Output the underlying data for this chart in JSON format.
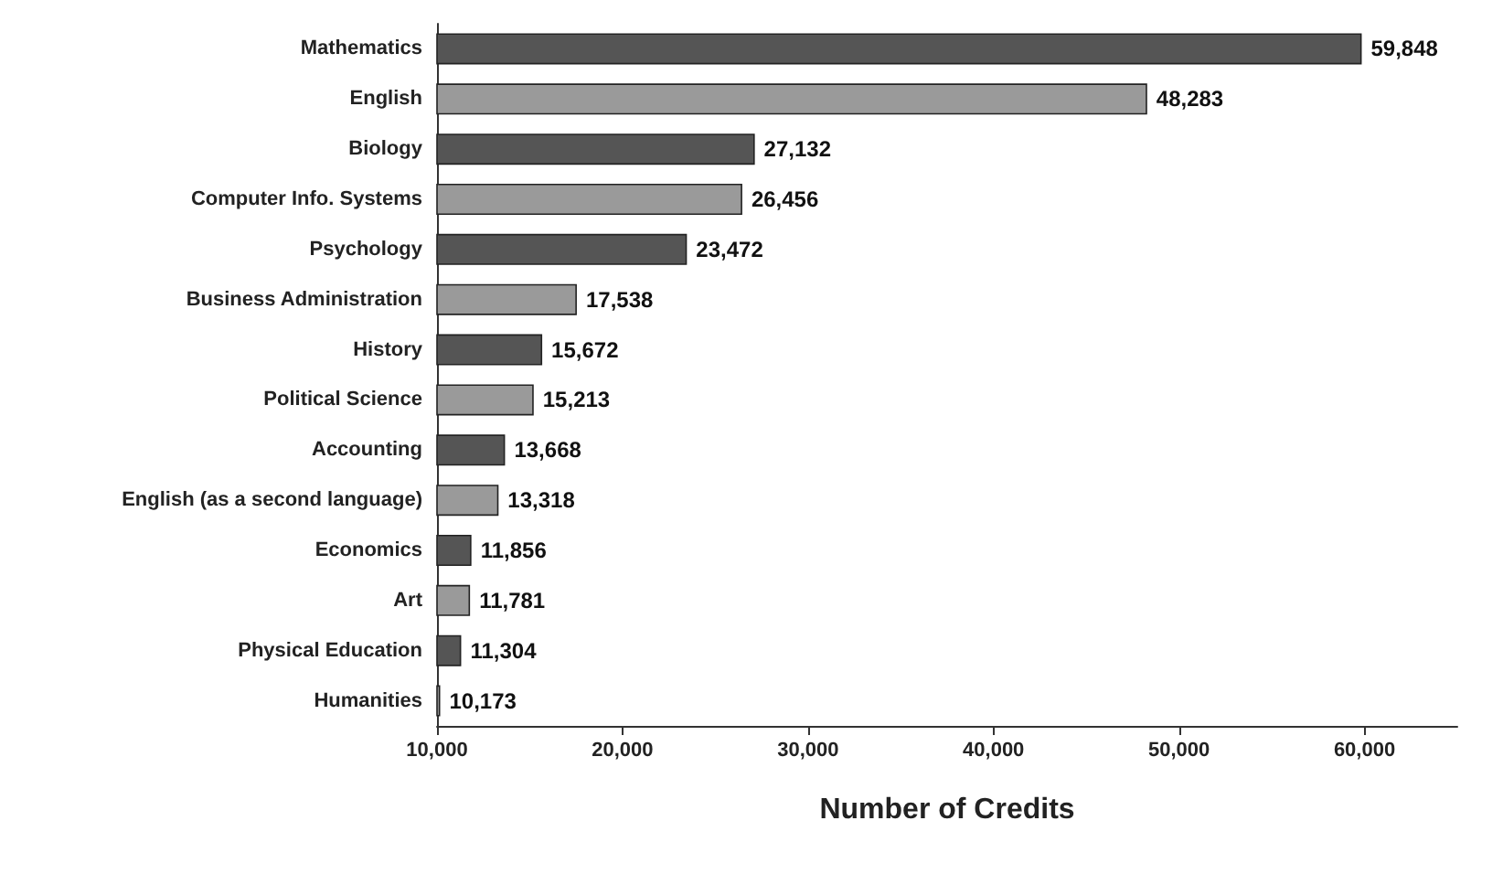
{
  "chart_data": {
    "type": "bar",
    "orientation": "horizontal",
    "xlabel": "Number of Credits",
    "categories": [
      "Mathematics",
      "English",
      "Biology",
      "Computer Info. Systems",
      "Psychology",
      "Business Administration",
      "History",
      "Political Science",
      "Accounting",
      "English (as a second language)",
      "Economics",
      "Art",
      "Physical Education",
      "Humanities"
    ],
    "values": [
      59848,
      48283,
      27132,
      26456,
      23472,
      17538,
      15672,
      15213,
      13668,
      13318,
      11856,
      11781,
      11304,
      10173
    ],
    "value_labels": [
      "59,848",
      "48,283",
      "27,132",
      "26,456",
      "23,472",
      "17,538",
      "15,672",
      "15,213",
      "13,668",
      "13,318",
      "11,856",
      "11,781",
      "11,304",
      "10,173"
    ],
    "colors": [
      "#555555",
      "#9a9a9a",
      "#555555",
      "#9a9a9a",
      "#555555",
      "#9a9a9a",
      "#555555",
      "#9a9a9a",
      "#555555",
      "#9a9a9a",
      "#555555",
      "#9a9a9a",
      "#555555",
      "#9a9a9a"
    ],
    "xlim": [
      10000,
      65000
    ],
    "xticks": [
      {
        "value": 10000,
        "label": "10,000"
      },
      {
        "value": 20000,
        "label": "20,000"
      },
      {
        "value": 30000,
        "label": "30,000"
      },
      {
        "value": 40000,
        "label": "40,000"
      },
      {
        "value": 50000,
        "label": "50,000"
      },
      {
        "value": 60000,
        "label": "60,000"
      }
    ],
    "grid": false
  }
}
